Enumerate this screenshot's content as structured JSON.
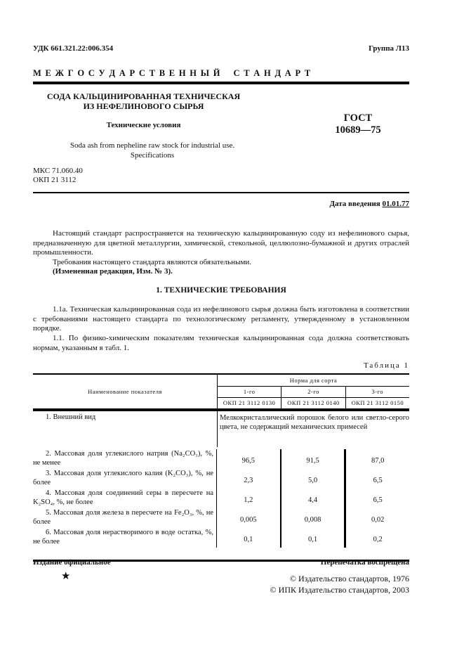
{
  "header": {
    "udk": "УДК 661.321.22:006.354",
    "group": "Группа Л13",
    "banner": "М Е Ж Г О С У Д А Р С Т В Е Н Н Ы Й    С Т А Н Д А Р Т"
  },
  "title": {
    "line1": "СОДА КАЛЬЦИНИРОВАННАЯ ТЕХНИЧЕСКАЯ",
    "line2": "ИЗ НЕФЕЛИНОВОГО СЫРЬЯ",
    "subtitle": "Технические условия",
    "en1": "Soda ash from nepheline raw stock for industrial use.",
    "en2": "Specifications",
    "gost1": "ГОСТ",
    "gost2": "10689—75"
  },
  "codes": {
    "mks": "МКС 71.060.40",
    "okp": "ОКП 21 3112"
  },
  "date": {
    "label": "Дата введения",
    "value": "01.01.77"
  },
  "body": {
    "p1": "Настоящий стандарт распространяется на техническую кальцинированную соду из нефелинового сырья, предназначенную для цветной металлургии, химической, стекольной, целлюлозно-бумажной и других отраслей промышленности.",
    "p2": "Требования настоящего стандарта являются обязательными.",
    "p3": "(Измененная редакция, Изм. № 3).",
    "section": "1. ТЕХНИЧЕСКИЕ ТРЕБОВАНИЯ",
    "p4": "1.1а. Техническая кальцинированная сода из нефелинового сырья должна быть изготовлена в соответствии с требованиями настоящего стандарта по технологическому регламенту, утвержденному в установленном порядке.",
    "p5": "1.1. По физико-химическим показателям техническая кальцинированная сода должна соответствовать нормам, указанным в табл. 1."
  },
  "table": {
    "caption": "Таблица 1",
    "col_name": "Наименование показателя",
    "col_group": "Норма для сорта",
    "grades": [
      "1-го",
      "2-го",
      "3-го"
    ],
    "okp": [
      "ОКП 21 3112 0130",
      "ОКП 21 3112 0140",
      "ОКП 21 3112 0150"
    ],
    "row1": {
      "name": "1. Внешний вид",
      "value": "Мелкокристаллический порошок белого или светло-серого цвета, не содержащий механических примесей"
    },
    "rows": [
      {
        "name": "2. Массовая доля углекислого натрия (Na₂CO₃), %, не менее",
        "values": [
          "96,5",
          "91,5",
          "87,0"
        ]
      },
      {
        "name": "3. Массовая доля углекислого калия (K₂CO₃), %, не более",
        "values": [
          "2,3",
          "5,0",
          "6,5"
        ]
      },
      {
        "name": "4. Массовая доля соединений серы в пересчете на K₂SO₄, %, не более",
        "values": [
          "1,2",
          "4,4",
          "6,5"
        ]
      },
      {
        "name": "5. Массовая доля железа в пересчете на Fe₂O₃, %, не более",
        "values": [
          "0,005",
          "0,008",
          "0,02"
        ]
      },
      {
        "name": "6. Массовая доля нерастворимого в воде остатка, %, не более",
        "values": [
          "0,1",
          "0,1",
          "0,2"
        ]
      }
    ]
  },
  "footer": {
    "official": "Издание официальное",
    "reprint": "Перепечатка воспрещена",
    "star": "★",
    "copy1": "© Издательство стандартов, 1976",
    "copy2": "© ИПК Издательство стандартов, 2003"
  }
}
